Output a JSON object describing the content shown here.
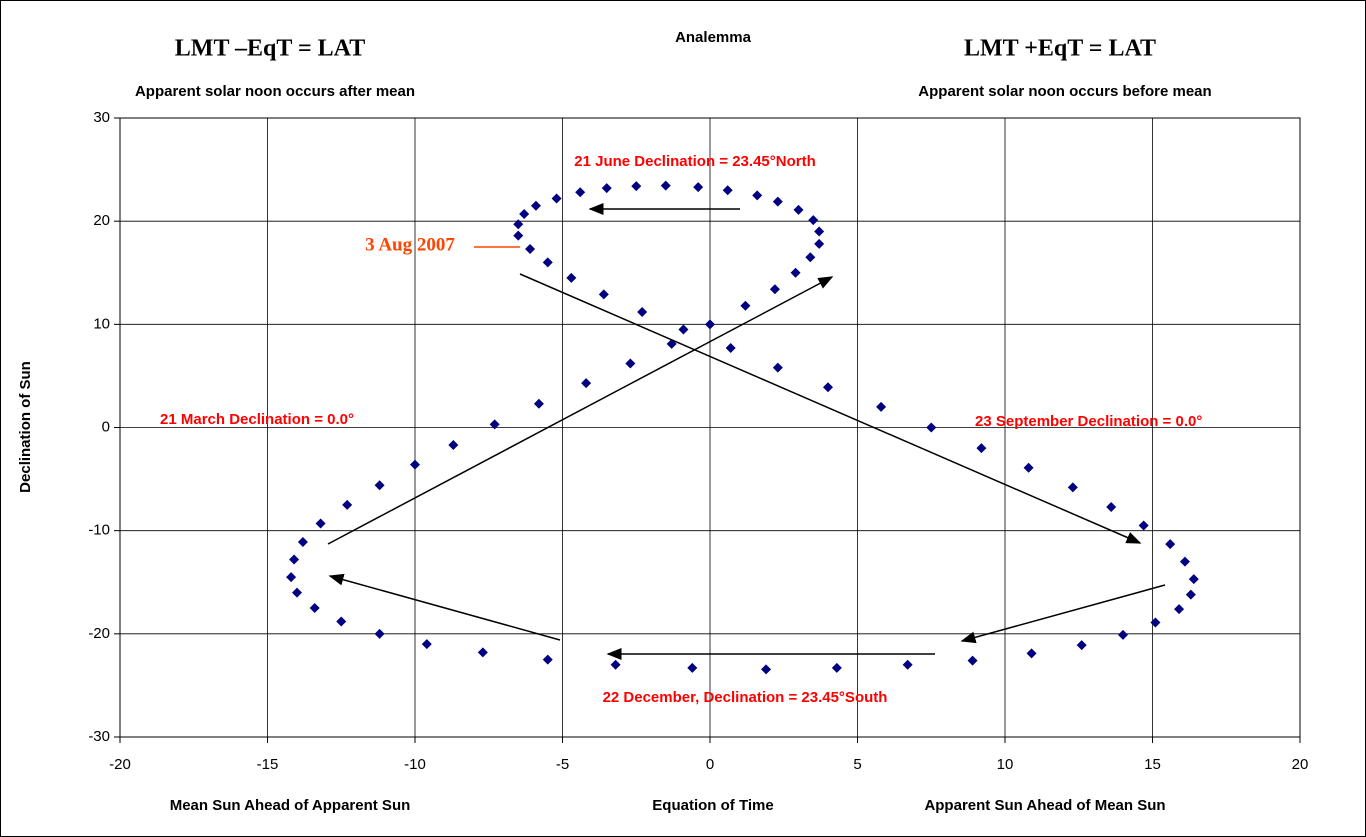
{
  "chart_data": {
    "type": "scatter",
    "title": "Analemma",
    "xlabel": "Equation of Time",
    "ylabel": "Declination of Sun",
    "annotations": [
      "LMT –EqT = LAT",
      "LMT +EqT = LAT",
      "Apparent solar noon occurs after mean",
      "Apparent solar noon occurs before mean",
      "21 June Declination = 23.45°North",
      "3 Aug 2007",
      "21 March  Declination = 0.0°",
      "23 September Declination = 0.0°",
      "22 December, Declination = 23.45°South",
      "Mean Sun Ahead of Apparent Sun",
      "Apparent Sun Ahead of Mean Sun"
    ],
    "xlim": [
      -20,
      20
    ],
    "xticks": [
      -20,
      -15,
      -10,
      -5,
      0,
      5,
      10,
      15,
      20
    ],
    "ylim": [
      -30,
      30
    ],
    "yticks": [
      -30,
      -20,
      -10,
      0,
      10,
      20,
      30
    ],
    "grid": true,
    "series": [
      {
        "color": "#000080",
        "x": [
          -3.2,
          -5.5,
          -7.7,
          -9.6,
          -11.2,
          -12.5,
          -13.4,
          -14.0,
          -14.2,
          -14.1,
          -13.8,
          -13.2,
          -12.3,
          -11.2,
          -10.0,
          -8.7,
          -7.3,
          -5.8,
          -4.2,
          -2.7,
          -1.3,
          0.0,
          1.2,
          2.2,
          2.9,
          3.4,
          3.7,
          3.7,
          3.5,
          3.0,
          2.3,
          1.6,
          0.6,
          -0.4,
          -1.5,
          -2.5,
          -3.5,
          -4.4,
          -5.2,
          -5.9,
          -6.3,
          -6.5,
          -6.5,
          -6.1,
          -5.5,
          -4.7,
          -3.6,
          -2.3,
          -0.9,
          0.7,
          2.3,
          4.0,
          5.8,
          7.5,
          9.2,
          10.8,
          12.3,
          13.6,
          14.7,
          15.6,
          16.1,
          16.4,
          16.3,
          15.9,
          15.1,
          14.0,
          12.6,
          10.9,
          8.9,
          6.7,
          4.3,
          1.9,
          -0.6
        ],
        "y": [
          -23.0,
          -22.5,
          -21.8,
          -21.0,
          -20.0,
          -18.8,
          -17.5,
          -16.0,
          -14.5,
          -12.8,
          -11.1,
          -9.3,
          -7.5,
          -5.6,
          -3.6,
          -1.7,
          0.3,
          2.3,
          4.3,
          6.2,
          8.1,
          10.0,
          11.8,
          13.4,
          15.0,
          16.5,
          17.8,
          19.0,
          20.1,
          21.1,
          21.9,
          22.5,
          23.0,
          23.3,
          23.44,
          23.4,
          23.2,
          22.8,
          22.2,
          21.5,
          20.7,
          19.7,
          18.6,
          17.3,
          16.0,
          14.5,
          12.9,
          11.2,
          9.5,
          7.7,
          5.8,
          3.9,
          2.0,
          0.0,
          -2.0,
          -3.9,
          -5.8,
          -7.7,
          -9.5,
          -11.3,
          -13.0,
          -14.7,
          -16.2,
          -17.6,
          -18.9,
          -20.1,
          -21.1,
          -21.9,
          -22.6,
          -23.0,
          -23.3,
          -23.44,
          -23.3
        ]
      }
    ]
  }
}
